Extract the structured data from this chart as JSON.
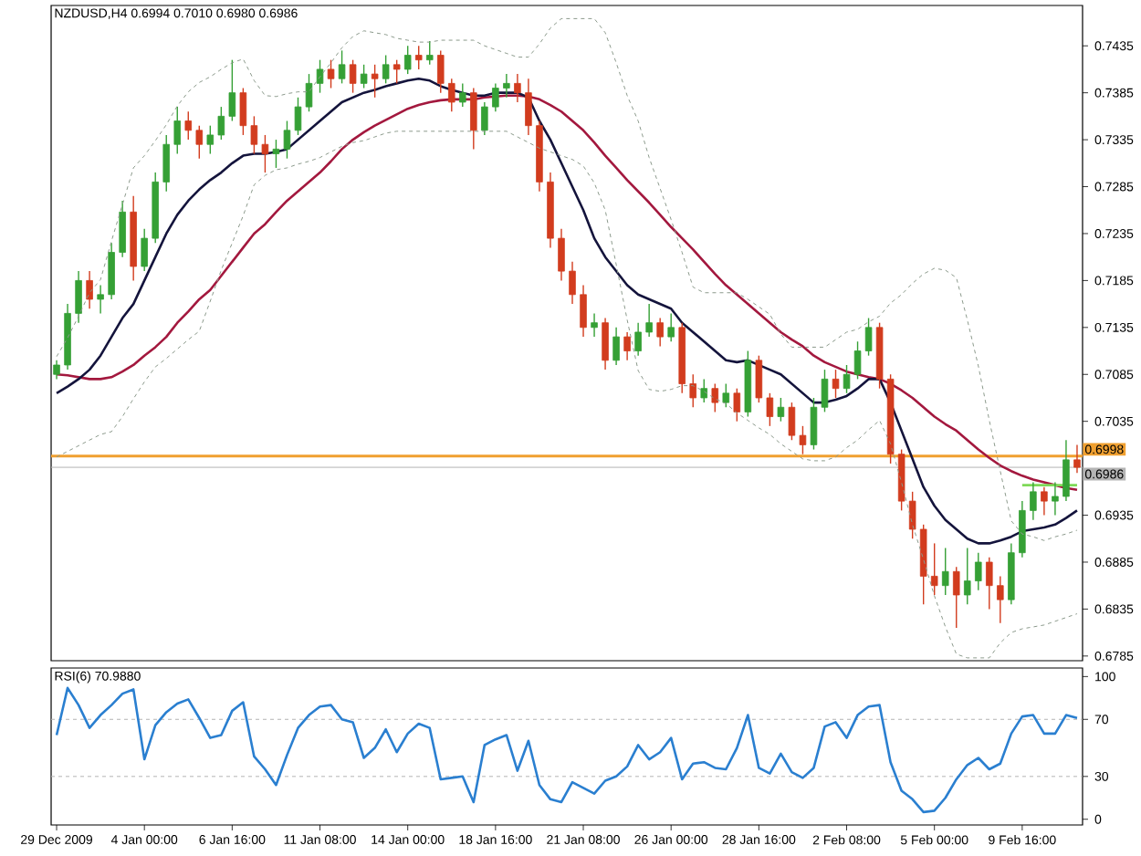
{
  "chart_data": [
    {
      "type": "candlestick",
      "title": "NZDUSD,H4 0.6994 0.7010 0.6980 0.6986",
      "categories": [
        null,
        null,
        null,
        null,
        null,
        null,
        null,
        null,
        null,
        null,
        null,
        null,
        null,
        null,
        null,
        null,
        null,
        null,
        null,
        null,
        null,
        null,
        null,
        null,
        null,
        null,
        null,
        null,
        null,
        null,
        null,
        null,
        null,
        null,
        null,
        null,
        null,
        null,
        null,
        null,
        null,
        null,
        null,
        null,
        null,
        null,
        null,
        null,
        null,
        null,
        null,
        null,
        null,
        null,
        null,
        null,
        null,
        null,
        null,
        null,
        null,
        null,
        null,
        null,
        null,
        null,
        null,
        null,
        null,
        null,
        null,
        null,
        null,
        null,
        null,
        null,
        null,
        null,
        null,
        null,
        null,
        null,
        null,
        null,
        null,
        null,
        null,
        null,
        null,
        null,
        null,
        null,
        null,
        null
      ],
      "ohlc": [
        [
          0.7085,
          0.71,
          0.708,
          0.7095
        ],
        [
          0.7095,
          0.716,
          0.709,
          0.715
        ],
        [
          0.715,
          0.7195,
          0.714,
          0.7185
        ],
        [
          0.7185,
          0.7195,
          0.7155,
          0.7165
        ],
        [
          0.7165,
          0.718,
          0.715,
          0.717
        ],
        [
          0.717,
          0.7225,
          0.7165,
          0.7215
        ],
        [
          0.7215,
          0.727,
          0.721,
          0.7258
        ],
        [
          0.7258,
          0.7275,
          0.7185,
          0.72
        ],
        [
          0.72,
          0.724,
          0.7195,
          0.723
        ],
        [
          0.723,
          0.73,
          0.7225,
          0.729
        ],
        [
          0.729,
          0.734,
          0.728,
          0.733
        ],
        [
          0.733,
          0.737,
          0.732,
          0.7355
        ],
        [
          0.7355,
          0.7365,
          0.7335,
          0.7345
        ],
        [
          0.7345,
          0.735,
          0.7315,
          0.733
        ],
        [
          0.733,
          0.735,
          0.732,
          0.734
        ],
        [
          0.734,
          0.737,
          0.7335,
          0.736
        ],
        [
          0.736,
          0.742,
          0.7355,
          0.7385
        ],
        [
          0.7385,
          0.739,
          0.734,
          0.735
        ],
        [
          0.735,
          0.736,
          0.732,
          0.733
        ],
        [
          0.733,
          0.734,
          0.73,
          0.732
        ],
        [
          0.732,
          0.7335,
          0.7305,
          0.7325
        ],
        [
          0.7325,
          0.7355,
          0.7315,
          0.7345
        ],
        [
          0.7345,
          0.738,
          0.734,
          0.737
        ],
        [
          0.737,
          0.7405,
          0.7365,
          0.7395
        ],
        [
          0.7395,
          0.742,
          0.7385,
          0.741
        ],
        [
          0.741,
          0.742,
          0.739,
          0.74
        ],
        [
          0.74,
          0.743,
          0.7395,
          0.7415
        ],
        [
          0.7415,
          0.742,
          0.7385,
          0.7395
        ],
        [
          0.7395,
          0.7415,
          0.739,
          0.7405
        ],
        [
          0.7405,
          0.7415,
          0.738,
          0.74
        ],
        [
          0.74,
          0.7425,
          0.7395,
          0.7415
        ],
        [
          0.7415,
          0.742,
          0.7395,
          0.741
        ],
        [
          0.741,
          0.7435,
          0.7405,
          0.7425
        ],
        [
          0.7425,
          0.7435,
          0.741,
          0.742
        ],
        [
          0.742,
          0.744,
          0.7415,
          0.7425
        ],
        [
          0.7425,
          0.743,
          0.7385,
          0.7395
        ],
        [
          0.7395,
          0.74,
          0.7365,
          0.7375
        ],
        [
          0.7375,
          0.7395,
          0.737,
          0.7385
        ],
        [
          0.7385,
          0.739,
          0.7325,
          0.7345
        ],
        [
          0.7345,
          0.7375,
          0.734,
          0.737
        ],
        [
          0.737,
          0.7395,
          0.7365,
          0.739
        ],
        [
          0.739,
          0.7405,
          0.738,
          0.7395
        ],
        [
          0.7395,
          0.7405,
          0.7375,
          0.7385
        ],
        [
          0.7385,
          0.74,
          0.734,
          0.735
        ],
        [
          0.735,
          0.7355,
          0.728,
          0.729
        ],
        [
          0.729,
          0.73,
          0.722,
          0.723
        ],
        [
          0.723,
          0.724,
          0.7185,
          0.7195
        ],
        [
          0.7195,
          0.7205,
          0.716,
          0.717
        ],
        [
          0.717,
          0.718,
          0.7125,
          0.7135
        ],
        [
          0.7135,
          0.715,
          0.7125,
          0.714
        ],
        [
          0.714,
          0.7145,
          0.709,
          0.71
        ],
        [
          0.71,
          0.7135,
          0.7095,
          0.7125
        ],
        [
          0.7125,
          0.713,
          0.71,
          0.711
        ],
        [
          0.711,
          0.714,
          0.7105,
          0.713
        ],
        [
          0.713,
          0.716,
          0.7125,
          0.714
        ],
        [
          0.714,
          0.7145,
          0.7115,
          0.7125
        ],
        [
          0.7125,
          0.715,
          0.712,
          0.7135
        ],
        [
          0.7135,
          0.714,
          0.7065,
          0.7075
        ],
        [
          0.7075,
          0.7085,
          0.705,
          0.706
        ],
        [
          0.706,
          0.708,
          0.7055,
          0.707
        ],
        [
          0.707,
          0.7075,
          0.7045,
          0.7055
        ],
        [
          0.7055,
          0.7075,
          0.705,
          0.7065
        ],
        [
          0.7065,
          0.707,
          0.7035,
          0.7045
        ],
        [
          0.7045,
          0.711,
          0.704,
          0.71
        ],
        [
          0.71,
          0.7105,
          0.7055,
          0.706
        ],
        [
          0.706,
          0.7065,
          0.703,
          0.704
        ],
        [
          0.704,
          0.706,
          0.7035,
          0.705
        ],
        [
          0.705,
          0.7055,
          0.7015,
          0.702
        ],
        [
          0.702,
          0.703,
          0.7,
          0.701
        ],
        [
          0.701,
          0.706,
          0.7005,
          0.705
        ],
        [
          0.705,
          0.709,
          0.7045,
          0.708
        ],
        [
          0.708,
          0.709,
          0.706,
          0.707
        ],
        [
          0.707,
          0.7095,
          0.7065,
          0.7085
        ],
        [
          0.7085,
          0.712,
          0.708,
          0.711
        ],
        [
          0.711,
          0.7145,
          0.7105,
          0.7135
        ],
        [
          0.7135,
          0.714,
          0.707,
          0.708
        ],
        [
          0.708,
          0.7085,
          0.699,
          0.7
        ],
        [
          0.7,
          0.7005,
          0.694,
          0.695
        ],
        [
          0.695,
          0.696,
          0.691,
          0.692
        ],
        [
          0.692,
          0.6925,
          0.684,
          0.687
        ],
        [
          0.687,
          0.6905,
          0.685,
          0.686
        ],
        [
          0.686,
          0.69,
          0.685,
          0.6875
        ],
        [
          0.6875,
          0.688,
          0.6815,
          0.685
        ],
        [
          0.685,
          0.69,
          0.684,
          0.6865
        ],
        [
          0.6865,
          0.6895,
          0.6855,
          0.6885
        ],
        [
          0.6885,
          0.689,
          0.6835,
          0.686
        ],
        [
          0.686,
          0.687,
          0.682,
          0.6845
        ],
        [
          0.6845,
          0.6905,
          0.684,
          0.6895
        ],
        [
          0.6895,
          0.695,
          0.689,
          0.694
        ],
        [
          0.694,
          0.697,
          0.693,
          0.696
        ],
        [
          0.696,
          0.6965,
          0.6935,
          0.695
        ],
        [
          0.695,
          0.697,
          0.6935,
          0.6955
        ],
        [
          0.6955,
          0.7015,
          0.695,
          0.6994
        ],
        [
          0.6994,
          0.701,
          0.698,
          0.6986
        ]
      ],
      "colors": [
        "#35a035",
        "#35a035",
        "#35a035",
        "#d23c1e",
        "#35a035",
        "#35a035",
        "#35a035",
        "#d23c1e",
        "#35a035",
        "#35a035",
        "#35a035",
        "#35a035",
        "#d23c1e",
        "#d23c1e",
        "#35a035",
        "#35a035",
        "#35a035",
        "#d23c1e",
        "#d23c1e",
        "#d23c1e",
        "#35a035",
        "#35a035",
        "#35a035",
        "#35a035",
        "#35a035",
        "#d23c1e",
        "#35a035",
        "#d23c1e",
        "#35a035",
        "#d23c1e",
        "#35a035",
        "#d23c1e",
        "#35a035",
        "#d23c1e",
        "#35a035",
        "#d23c1e",
        "#d23c1e",
        "#35a035",
        "#d23c1e",
        "#35a035",
        "#35a035",
        "#35a035",
        "#d23c1e",
        "#d23c1e",
        "#d23c1e",
        "#d23c1e",
        "#d23c1e",
        "#d23c1e",
        "#d23c1e",
        "#35a035",
        "#d23c1e",
        "#35a035",
        "#d23c1e",
        "#35a035",
        "#35a035",
        "#d23c1e",
        "#35a035",
        "#d23c1e",
        "#d23c1e",
        "#35a035",
        "#d23c1e",
        "#35a035",
        "#d23c1e",
        "#35a035",
        "#d23c1e",
        "#d23c1e",
        "#35a035",
        "#d23c1e",
        "#d23c1e",
        "#35a035",
        "#35a035",
        "#d23c1e",
        "#35a035",
        "#35a035",
        "#35a035",
        "#d23c1e",
        "#d23c1e",
        "#d23c1e",
        "#d23c1e",
        "#d23c1e",
        "#d23c1e",
        "#35a035",
        "#d23c1e",
        "#35a035",
        "#35a035",
        "#d23c1e",
        "#d23c1e",
        "#35a035",
        "#35a035",
        "#35a035",
        "#d23c1e",
        "#35a035",
        "#35a035",
        "#d23c1e"
      ],
      "series": [
        {
          "type": "line",
          "color": "#8c9a8c",
          "line_style": "dashed",
          "values": [
            0.7104,
            0.7124,
            0.7147,
            0.7172,
            0.7186,
            0.7227,
            0.7266,
            0.7305,
            0.7318,
            0.7334,
            0.7351,
            0.7371,
            0.7386,
            0.7396,
            0.7402,
            0.741,
            0.7417,
            0.7421,
            0.7398,
            0.7382,
            0.7381,
            0.7384,
            0.7386,
            0.7386,
            0.7402,
            0.7417,
            0.7433,
            0.7445,
            0.7451,
            0.7449,
            0.7447,
            0.7443,
            0.7441,
            0.7439,
            0.7439,
            0.7441,
            0.7441,
            0.7441,
            0.7441,
            0.7435,
            0.7431,
            0.7427,
            0.7423,
            0.7423,
            0.7437,
            0.7454,
            0.7464,
            0.7464,
            0.7464,
            0.7464,
            0.7449,
            0.7417,
            0.7382,
            0.7355,
            0.7316,
            0.7283,
            0.725,
            0.7215,
            0.7178,
            0.7172,
            0.7172,
            0.7172,
            0.7172,
            0.7165,
            0.7157,
            0.7149,
            0.7128,
            0.7114,
            0.7114,
            0.7114,
            0.7114,
            0.7122,
            0.713,
            0.7133,
            0.7141,
            0.7147,
            0.7161,
            0.717,
            0.7182,
            0.7192,
            0.7198,
            0.7196,
            0.7188,
            0.7143,
            0.7094,
            0.7036,
            0.6982,
            0.6929,
            0.6915,
            0.6912,
            0.6908,
            0.6912,
            0.6915,
            0.6919
          ]
        },
        {
          "type": "line",
          "color": "#8c9a8c",
          "line_style": "dashed",
          "values": [
            0.6997,
            0.7003,
            0.7009,
            0.7015,
            0.7021,
            0.7024,
            0.704,
            0.7059,
            0.7077,
            0.7093,
            0.7102,
            0.7112,
            0.7122,
            0.7131,
            0.7163,
            0.7196,
            0.7225,
            0.7254,
            0.7287,
            0.7297,
            0.7303,
            0.7305,
            0.7309,
            0.7312,
            0.7316,
            0.7322,
            0.7328,
            0.7332,
            0.7334,
            0.7338,
            0.7342,
            0.7344,
            0.7344,
            0.7344,
            0.7344,
            0.7344,
            0.7344,
            0.7344,
            0.7344,
            0.7344,
            0.7344,
            0.7344,
            0.7338,
            0.7332,
            0.7326,
            0.7322,
            0.7318,
            0.7314,
            0.7307,
            0.7289,
            0.726,
            0.7202,
            0.7143,
            0.7089,
            0.7069,
            0.7067,
            0.7069,
            0.7073,
            0.7073,
            0.7067,
            0.7059,
            0.7054,
            0.7044,
            0.7036,
            0.7028,
            0.7021,
            0.7011,
            0.7003,
            0.6995,
            0.6993,
            0.6993,
            0.6997,
            0.7007,
            0.7015,
            0.7026,
            0.7036,
            0.7011,
            0.697,
            0.6925,
            0.6888,
            0.6849,
            0.6816,
            0.6787,
            0.6783,
            0.6783,
            0.6783,
            0.6799,
            0.681,
            0.6814,
            0.6816,
            0.6818,
            0.6822,
            0.6826,
            0.683
          ]
        },
        {
          "type": "line",
          "color": "#a3183e",
          "line_style": "solid",
          "values": [
            0.7085,
            0.7084,
            0.7082,
            0.708,
            0.708,
            0.7082,
            0.7088,
            0.7095,
            0.7105,
            0.7114,
            0.7125,
            0.714,
            0.7152,
            0.7165,
            0.7175,
            0.719,
            0.7205,
            0.722,
            0.7235,
            0.7245,
            0.7258,
            0.727,
            0.728,
            0.729,
            0.73,
            0.7312,
            0.7325,
            0.7335,
            0.7343,
            0.735,
            0.7356,
            0.7362,
            0.7368,
            0.7372,
            0.7375,
            0.7377,
            0.7378,
            0.7378,
            0.7378,
            0.738,
            0.7381,
            0.7382,
            0.7382,
            0.7381,
            0.7378,
            0.7372,
            0.7365,
            0.7355,
            0.7345,
            0.7332,
            0.7318,
            0.7305,
            0.7292,
            0.728,
            0.7268,
            0.7255,
            0.7242,
            0.723,
            0.7218,
            0.7205,
            0.7192,
            0.718,
            0.717,
            0.716,
            0.715,
            0.714,
            0.713,
            0.7122,
            0.7115,
            0.7105,
            0.7098,
            0.7093,
            0.7088,
            0.7085,
            0.7082,
            0.708,
            0.7075,
            0.7068,
            0.706,
            0.705,
            0.704,
            0.7032,
            0.7025,
            0.7015,
            0.7005,
            0.6996,
            0.6988,
            0.6982,
            0.6977,
            0.6973,
            0.697,
            0.6967,
            0.6964,
            0.6962
          ]
        },
        {
          "type": "line",
          "color": "#14143c",
          "line_style": "solid",
          "values": [
            0.7065,
            0.7072,
            0.708,
            0.709,
            0.7105,
            0.7125,
            0.7145,
            0.716,
            0.7185,
            0.721,
            0.7235,
            0.7255,
            0.727,
            0.7282,
            0.7292,
            0.73,
            0.731,
            0.7318,
            0.732,
            0.732,
            0.7322,
            0.7325,
            0.7335,
            0.7345,
            0.7355,
            0.7365,
            0.7375,
            0.738,
            0.7385,
            0.7388,
            0.7392,
            0.7395,
            0.7398,
            0.74,
            0.7398,
            0.7392,
            0.7388,
            0.7385,
            0.7382,
            0.7382,
            0.7385,
            0.7385,
            0.7385,
            0.738,
            0.7355,
            0.7335,
            0.731,
            0.7285,
            0.726,
            0.723,
            0.721,
            0.7195,
            0.718,
            0.717,
            0.7165,
            0.716,
            0.7155,
            0.714,
            0.713,
            0.712,
            0.711,
            0.71,
            0.7098,
            0.71,
            0.7095,
            0.709,
            0.7085,
            0.7075,
            0.7065,
            0.7055,
            0.7055,
            0.7058,
            0.7062,
            0.707,
            0.708,
            0.708,
            0.7055,
            0.7025,
            0.6995,
            0.6965,
            0.6945,
            0.693,
            0.692,
            0.691,
            0.6905,
            0.6905,
            0.6908,
            0.6912,
            0.6918,
            0.692,
            0.6922,
            0.6925,
            0.6932,
            0.694
          ]
        },
        {
          "type": "line",
          "color": "#7ed957",
          "line_style": "solid",
          "values": [
            null,
            null,
            null,
            null,
            null,
            null,
            null,
            null,
            null,
            null,
            null,
            null,
            null,
            null,
            null,
            null,
            null,
            null,
            null,
            null,
            null,
            null,
            null,
            null,
            null,
            null,
            null,
            null,
            null,
            null,
            null,
            null,
            null,
            null,
            null,
            null,
            null,
            null,
            null,
            null,
            null,
            null,
            null,
            null,
            null,
            null,
            null,
            null,
            null,
            null,
            null,
            null,
            null,
            null,
            null,
            null,
            null,
            null,
            null,
            null,
            null,
            null,
            null,
            null,
            null,
            null,
            null,
            null,
            null,
            null,
            null,
            null,
            null,
            null,
            null,
            null,
            null,
            null,
            null,
            null,
            null,
            null,
            null,
            null,
            null,
            null,
            null,
            null,
            0.6967,
            0.6967,
            0.6967,
            0.6967,
            0.6967,
            0.6967
          ]
        }
      ],
      "ref_lines": [
        {
          "axis": "y",
          "value": 0.6998,
          "label": "0.6998",
          "color": "#f0a030",
          "line_style": "solid"
        },
        {
          "axis": "y",
          "value": 0.6986,
          "label": "0.6986",
          "color": "#b4b4b4",
          "line_style": "solid"
        }
      ],
      "ylim": [
        0.678,
        0.7478
      ],
      "yticks": [
        0.6785,
        0.6835,
        0.6885,
        0.6935,
        0.7035,
        0.7085,
        0.7135,
        0.7185,
        0.7235,
        0.7285,
        0.7335,
        0.7385,
        0.7435
      ],
      "tick_labels": "y"
    },
    {
      "type": "line",
      "title": "RSI(6) 70.9880",
      "categories": [
        "29 Dec 2009",
        null,
        null,
        null,
        null,
        null,
        null,
        null,
        "4 Jan 00:00",
        null,
        null,
        null,
        null,
        null,
        null,
        null,
        "6 Jan 16:00",
        null,
        null,
        null,
        null,
        null,
        null,
        null,
        "11 Jan 08:00",
        null,
        null,
        null,
        null,
        null,
        null,
        null,
        "14 Jan 00:00",
        null,
        null,
        null,
        null,
        null,
        null,
        null,
        "18 Jan 16:00",
        null,
        null,
        null,
        null,
        null,
        null,
        null,
        "21 Jan 08:00",
        null,
        null,
        null,
        null,
        null,
        null,
        null,
        "26 Jan 00:00",
        null,
        null,
        null,
        null,
        null,
        null,
        null,
        "28 Jan 16:00",
        null,
        null,
        null,
        null,
        null,
        null,
        null,
        "2 Feb 08:00",
        null,
        null,
        null,
        null,
        null,
        null,
        null,
        "5 Feb 00:00",
        null,
        null,
        null,
        null,
        null,
        null,
        null,
        "9 Feb 16:00",
        null,
        null,
        null,
        null,
        null
      ],
      "series": [
        {
          "color": "#2a7fd0",
          "line_style": "solid",
          "values": [
            59,
            92,
            80,
            64,
            73,
            80,
            88,
            91,
            42,
            66,
            75,
            81,
            84,
            71,
            57,
            59,
            76,
            82,
            44,
            35,
            24,
            45,
            64,
            73,
            79,
            80,
            70,
            68,
            43,
            50,
            63,
            47,
            60,
            67,
            64,
            28,
            29,
            30,
            12,
            52,
            56,
            59,
            34,
            55,
            24,
            14,
            12,
            26,
            22,
            18,
            27,
            30,
            37,
            52,
            42,
            47,
            57,
            28,
            39,
            40,
            36,
            35,
            50,
            73,
            36,
            32,
            46,
            33,
            29,
            36,
            65,
            68,
            57,
            73,
            79,
            80,
            40,
            20,
            14,
            5,
            6,
            15,
            28,
            38,
            43,
            35,
            39,
            60,
            72,
            73,
            60,
            60,
            73,
            71
          ]
        }
      ],
      "ref_lines": [
        {
          "axis": "y",
          "value": 30,
          "color": "#b4b4b4",
          "line_style": "dashed"
        },
        {
          "axis": "y",
          "value": 70,
          "color": "#b4b4b4",
          "line_style": "dashed"
        }
      ],
      "ylim": [
        -4,
        106
      ],
      "yticks": [
        0,
        30,
        70,
        100
      ]
    }
  ]
}
